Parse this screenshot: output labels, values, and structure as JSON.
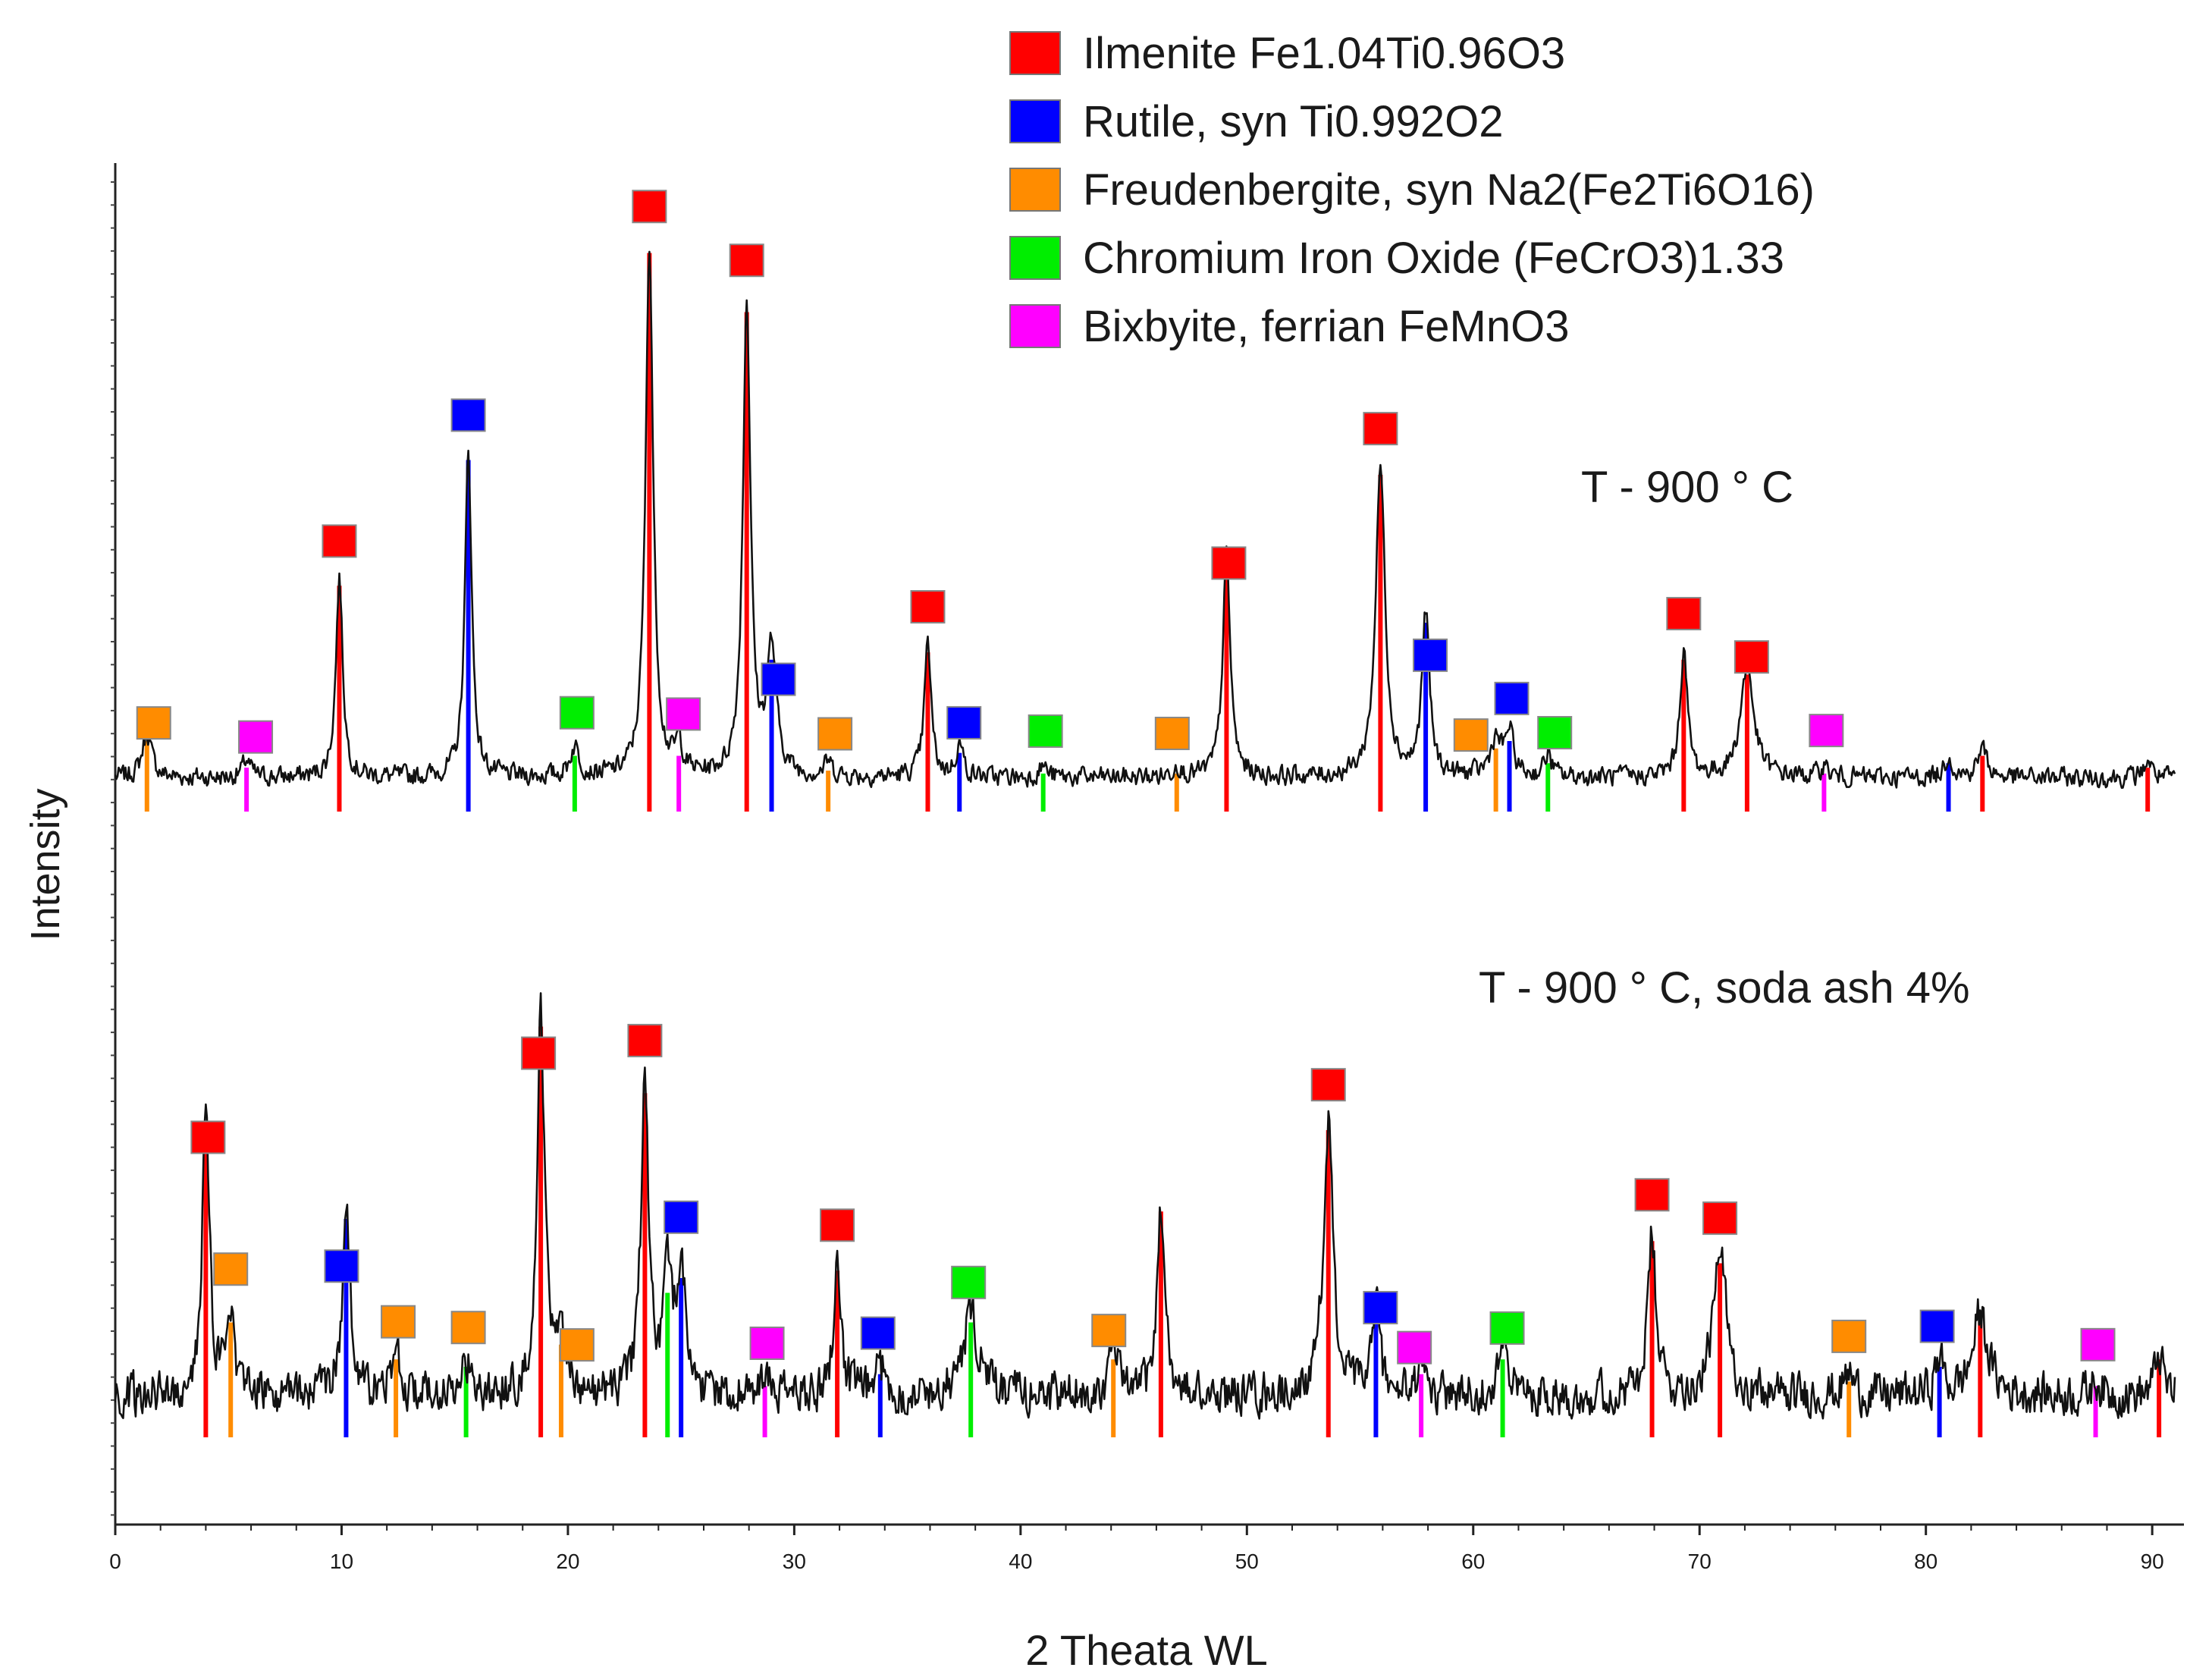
{
  "chart_data": {
    "type": "line",
    "title": "",
    "xlabel": "2 Theata WL",
    "ylabel": "Intensity",
    "xlim": [
      0,
      91
    ],
    "x_ticks": [
      0,
      10,
      20,
      30,
      40,
      50,
      60,
      70,
      80,
      90
    ],
    "grid": false,
    "y_ticks_labeled": false,
    "legend": {
      "placement": "top-right",
      "entries": [
        {
          "phase": "ilmenite",
          "label": "Ilmenite Fe1.04Ti0.96O3",
          "color": "#ff0000"
        },
        {
          "phase": "rutile",
          "label": "Rutile, syn Ti0.992O2",
          "color": "#0000ff"
        },
        {
          "phase": "freudenbergite",
          "label": "Freudenbergite, syn Na2(Fe2Ti6O16)",
          "color": "#ff8c00"
        },
        {
          "phase": "chromium",
          "label": "Chromium Iron Oxide (FeCrO3)1.33",
          "color": "#00ee00"
        },
        {
          "phase": "bixbyite",
          "label": "Bixbyite, ferrian FeMnO3",
          "color": "#ff00ff"
        }
      ]
    },
    "series": [
      {
        "name": "T - 900 ° C",
        "offset": 1.0,
        "baseline": 0.1,
        "noise": 0.09,
        "peaks": [
          {
            "x": 1.4,
            "h": 0.3,
            "w": 0.25,
            "phase": "freudenbergite"
          },
          {
            "x": 5.8,
            "h": 0.12,
            "w": 0.2,
            "phase": "bixbyite"
          },
          {
            "x": 9.9,
            "h": 1.35,
            "w": 0.18,
            "phase": "ilmenite"
          },
          {
            "x": 15.6,
            "h": 2.2,
            "w": 0.18,
            "phase": "rutile"
          },
          {
            "x": 20.3,
            "h": 0.2,
            "w": 0.25,
            "phase": "chromium"
          },
          {
            "x": 23.6,
            "h": 3.6,
            "w": 0.2,
            "phase": "ilmenite"
          },
          {
            "x": 24.9,
            "h": 0.2,
            "w": 0.2,
            "phase": "bixbyite"
          },
          {
            "x": 27.9,
            "h": 3.2,
            "w": 0.2,
            "phase": "ilmenite"
          },
          {
            "x": 29.0,
            "h": 0.85,
            "w": 0.25,
            "phase": "rutile"
          },
          {
            "x": 31.5,
            "h": 0.1,
            "w": 0.2,
            "phase": "freudenbergite"
          },
          {
            "x": 35.9,
            "h": 0.9,
            "w": 0.18,
            "phase": "ilmenite"
          },
          {
            "x": 37.3,
            "h": 0.22,
            "w": 0.2,
            "phase": "rutile"
          },
          {
            "x": 41.0,
            "h": 0.08,
            "w": 0.2,
            "phase": "chromium"
          },
          {
            "x": 46.9,
            "h": 0.08,
            "w": 0.2,
            "phase": "freudenbergite"
          },
          {
            "x": 49.1,
            "h": 1.5,
            "w": 0.2,
            "phase": "ilmenite"
          },
          {
            "x": 55.9,
            "h": 2.1,
            "w": 0.25,
            "phase": "ilmenite"
          },
          {
            "x": 57.9,
            "h": 1.1,
            "w": 0.2,
            "phase": "rutile"
          },
          {
            "x": 61.0,
            "h": 0.25,
            "w": 0.3,
            "phase": "freudenbergite"
          },
          {
            "x": 61.6,
            "h": 0.3,
            "w": 0.2,
            "phase": "rutile"
          },
          {
            "x": 63.3,
            "h": 0.15,
            "w": 0.2,
            "phase": "chromium"
          },
          {
            "x": 69.3,
            "h": 0.85,
            "w": 0.2,
            "phase": "ilmenite"
          },
          {
            "x": 72.1,
            "h": 0.75,
            "w": 0.35,
            "phase": "ilmenite"
          },
          {
            "x": 75.5,
            "h": 0.08,
            "w": 0.2,
            "phase": "bixbyite"
          },
          {
            "x": 81.0,
            "h": 0.15,
            "w": 0.2,
            "phase": "rutile"
          },
          {
            "x": 82.5,
            "h": 0.2,
            "w": 0.25,
            "phase": "ilmenite"
          },
          {
            "x": 89.8,
            "h": 0.12,
            "w": 0.2,
            "phase": "ilmenite"
          }
        ],
        "marker_x": [
          {
            "x": 1.7,
            "phase": "freudenbergite"
          },
          {
            "x": 6.2,
            "phase": "bixbyite"
          },
          {
            "x": 9.9,
            "phase": "ilmenite"
          },
          {
            "x": 15.6,
            "phase": "rutile"
          },
          {
            "x": 20.4,
            "phase": "chromium"
          },
          {
            "x": 23.6,
            "phase": "ilmenite"
          },
          {
            "x": 25.1,
            "phase": "bixbyite"
          },
          {
            "x": 27.9,
            "phase": "ilmenite"
          },
          {
            "x": 29.3,
            "phase": "rutile"
          },
          {
            "x": 31.8,
            "phase": "freudenbergite"
          },
          {
            "x": 35.9,
            "phase": "ilmenite"
          },
          {
            "x": 37.5,
            "phase": "rutile"
          },
          {
            "x": 41.1,
            "phase": "chromium"
          },
          {
            "x": 46.7,
            "phase": "freudenbergite"
          },
          {
            "x": 49.2,
            "phase": "ilmenite"
          },
          {
            "x": 55.9,
            "phase": "ilmenite"
          },
          {
            "x": 58.1,
            "phase": "rutile"
          },
          {
            "x": 59.9,
            "phase": "freudenbergite"
          },
          {
            "x": 61.7,
            "phase": "rutile"
          },
          {
            "x": 63.6,
            "phase": "chromium"
          },
          {
            "x": 69.3,
            "phase": "ilmenite"
          },
          {
            "x": 72.3,
            "phase": "ilmenite"
          },
          {
            "x": 75.6,
            "phase": "bixbyite"
          }
        ]
      },
      {
        "name": "T - 900 ° C, soda ash 4%",
        "offset": 0.0,
        "baseline": 0.15,
        "noise": 0.2,
        "peaks": [
          {
            "x": 4.0,
            "h": 1.85,
            "w": 0.2,
            "phase": "ilmenite"
          },
          {
            "x": 5.1,
            "h": 0.55,
            "w": 0.2,
            "phase": "freudenbergite"
          },
          {
            "x": 10.2,
            "h": 1.25,
            "w": 0.2,
            "phase": "rutile"
          },
          {
            "x": 12.4,
            "h": 0.3,
            "w": 0.2,
            "phase": "freudenbergite"
          },
          {
            "x": 15.5,
            "h": 0.25,
            "w": 0.2,
            "phase": "chromium"
          },
          {
            "x": 18.8,
            "h": 2.55,
            "w": 0.2,
            "phase": "ilmenite"
          },
          {
            "x": 19.7,
            "h": 0.4,
            "w": 0.25,
            "phase": "freudenbergite"
          },
          {
            "x": 23.4,
            "h": 2.1,
            "w": 0.2,
            "phase": "ilmenite"
          },
          {
            "x": 24.4,
            "h": 0.75,
            "w": 0.2,
            "phase": "chromium"
          },
          {
            "x": 25.0,
            "h": 0.85,
            "w": 0.25,
            "phase": "rutile"
          },
          {
            "x": 28.7,
            "h": 0.12,
            "w": 0.2,
            "phase": "bixbyite"
          },
          {
            "x": 31.9,
            "h": 0.9,
            "w": 0.2,
            "phase": "ilmenite"
          },
          {
            "x": 33.8,
            "h": 0.2,
            "w": 0.2,
            "phase": "rutile"
          },
          {
            "x": 37.8,
            "h": 0.55,
            "w": 0.4,
            "phase": "chromium"
          },
          {
            "x": 44.1,
            "h": 0.3,
            "w": 0.25,
            "phase": "freudenbergite"
          },
          {
            "x": 46.2,
            "h": 1.3,
            "w": 0.2,
            "phase": "ilmenite"
          },
          {
            "x": 53.6,
            "h": 1.85,
            "w": 0.25,
            "phase": "ilmenite"
          },
          {
            "x": 55.7,
            "h": 0.65,
            "w": 0.2,
            "phase": "rutile"
          },
          {
            "x": 57.7,
            "h": 0.2,
            "w": 0.2,
            "phase": "bixbyite"
          },
          {
            "x": 61.3,
            "h": 0.3,
            "w": 0.3,
            "phase": "chromium"
          },
          {
            "x": 67.9,
            "h": 1.1,
            "w": 0.2,
            "phase": "ilmenite"
          },
          {
            "x": 70.9,
            "h": 0.95,
            "w": 0.35,
            "phase": "ilmenite"
          },
          {
            "x": 76.6,
            "h": 0.15,
            "w": 0.25,
            "phase": "freudenbergite"
          },
          {
            "x": 80.6,
            "h": 0.25,
            "w": 0.2,
            "phase": "rutile"
          },
          {
            "x": 82.4,
            "h": 0.55,
            "w": 0.4,
            "phase": "ilmenite"
          },
          {
            "x": 87.5,
            "h": 0.12,
            "w": 0.2,
            "phase": "bixbyite"
          },
          {
            "x": 90.3,
            "h": 0.3,
            "w": 0.2,
            "phase": "ilmenite"
          }
        ],
        "marker_x": [
          {
            "x": 4.1,
            "phase": "ilmenite"
          },
          {
            "x": 5.1,
            "phase": "freudenbergite"
          },
          {
            "x": 10.0,
            "phase": "rutile"
          },
          {
            "x": 12.5,
            "phase": "freudenbergite"
          },
          {
            "x": 15.6,
            "phase": "freudenbergite"
          },
          {
            "x": 18.7,
            "phase": "ilmenite"
          },
          {
            "x": 20.4,
            "phase": "freudenbergite"
          },
          {
            "x": 23.4,
            "phase": "ilmenite"
          },
          {
            "x": 25.0,
            "phase": "rutile"
          },
          {
            "x": 28.8,
            "phase": "bixbyite"
          },
          {
            "x": 31.9,
            "phase": "ilmenite"
          },
          {
            "x": 33.7,
            "phase": "rutile"
          },
          {
            "x": 37.7,
            "phase": "chromium"
          },
          {
            "x": 43.9,
            "phase": "freudenbergite"
          },
          {
            "x": 53.6,
            "phase": "ilmenite"
          },
          {
            "x": 55.9,
            "phase": "rutile"
          },
          {
            "x": 57.4,
            "phase": "bixbyite"
          },
          {
            "x": 61.5,
            "phase": "chromium"
          },
          {
            "x": 67.9,
            "phase": "ilmenite"
          },
          {
            "x": 70.9,
            "phase": "ilmenite"
          },
          {
            "x": 76.6,
            "phase": "freudenbergite"
          },
          {
            "x": 80.5,
            "phase": "rutile"
          },
          {
            "x": 87.6,
            "phase": "bixbyite"
          }
        ]
      }
    ],
    "annotations": [
      {
        "series": 0,
        "text": "T - 900 ° C"
      },
      {
        "series": 1,
        "text": "T - 900 ° C, soda ash 4%"
      }
    ]
  }
}
